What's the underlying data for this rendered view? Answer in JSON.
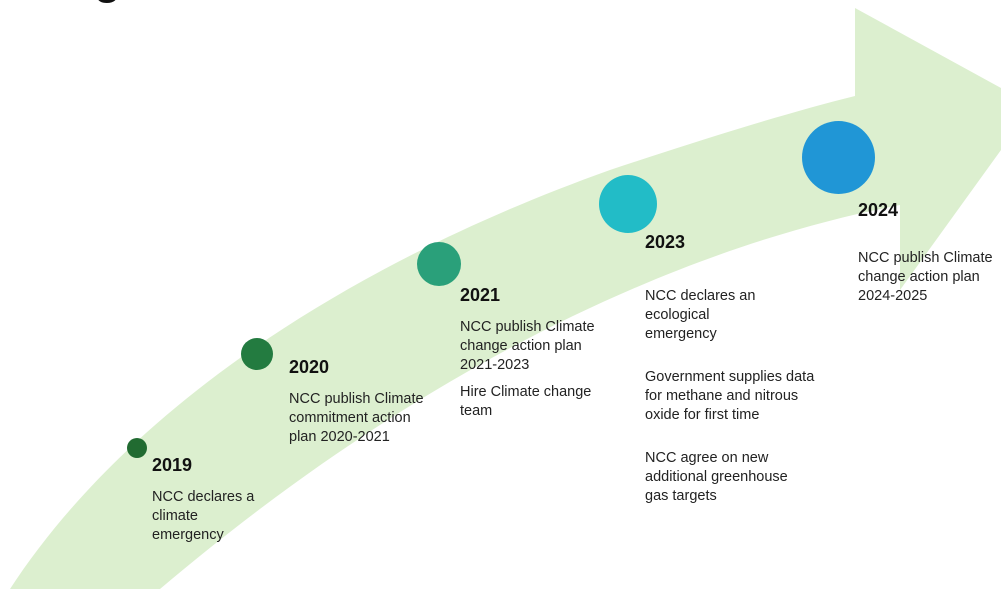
{
  "title_fragment": "g",
  "colors": {
    "arrow": "#dcefcf",
    "dot_2019": "#216b31",
    "dot_2020": "#237b40",
    "dot_2021": "#2aa07a",
    "dot_2023": "#22bcc7",
    "dot_2024": "#2096d6"
  },
  "milestones": [
    {
      "year": "2019",
      "items": [
        "NCC declares a climate emergency"
      ]
    },
    {
      "year": "2020",
      "items": [
        "NCC publish Climate commitment action plan 2020-2021"
      ]
    },
    {
      "year": "2021",
      "items": [
        "NCC publish Climate change action plan 2021-2023",
        "Hire Climate change team"
      ]
    },
    {
      "year": "2023",
      "items": [
        "NCC declares an ecological emergency",
        "Government supplies data for methane and nitrous oxide for first time",
        "NCC agree on new additional greenhouse gas targets"
      ]
    },
    {
      "year": "2024",
      "items": [
        "NCC publish Climate change action plan 2024-2025"
      ]
    }
  ]
}
